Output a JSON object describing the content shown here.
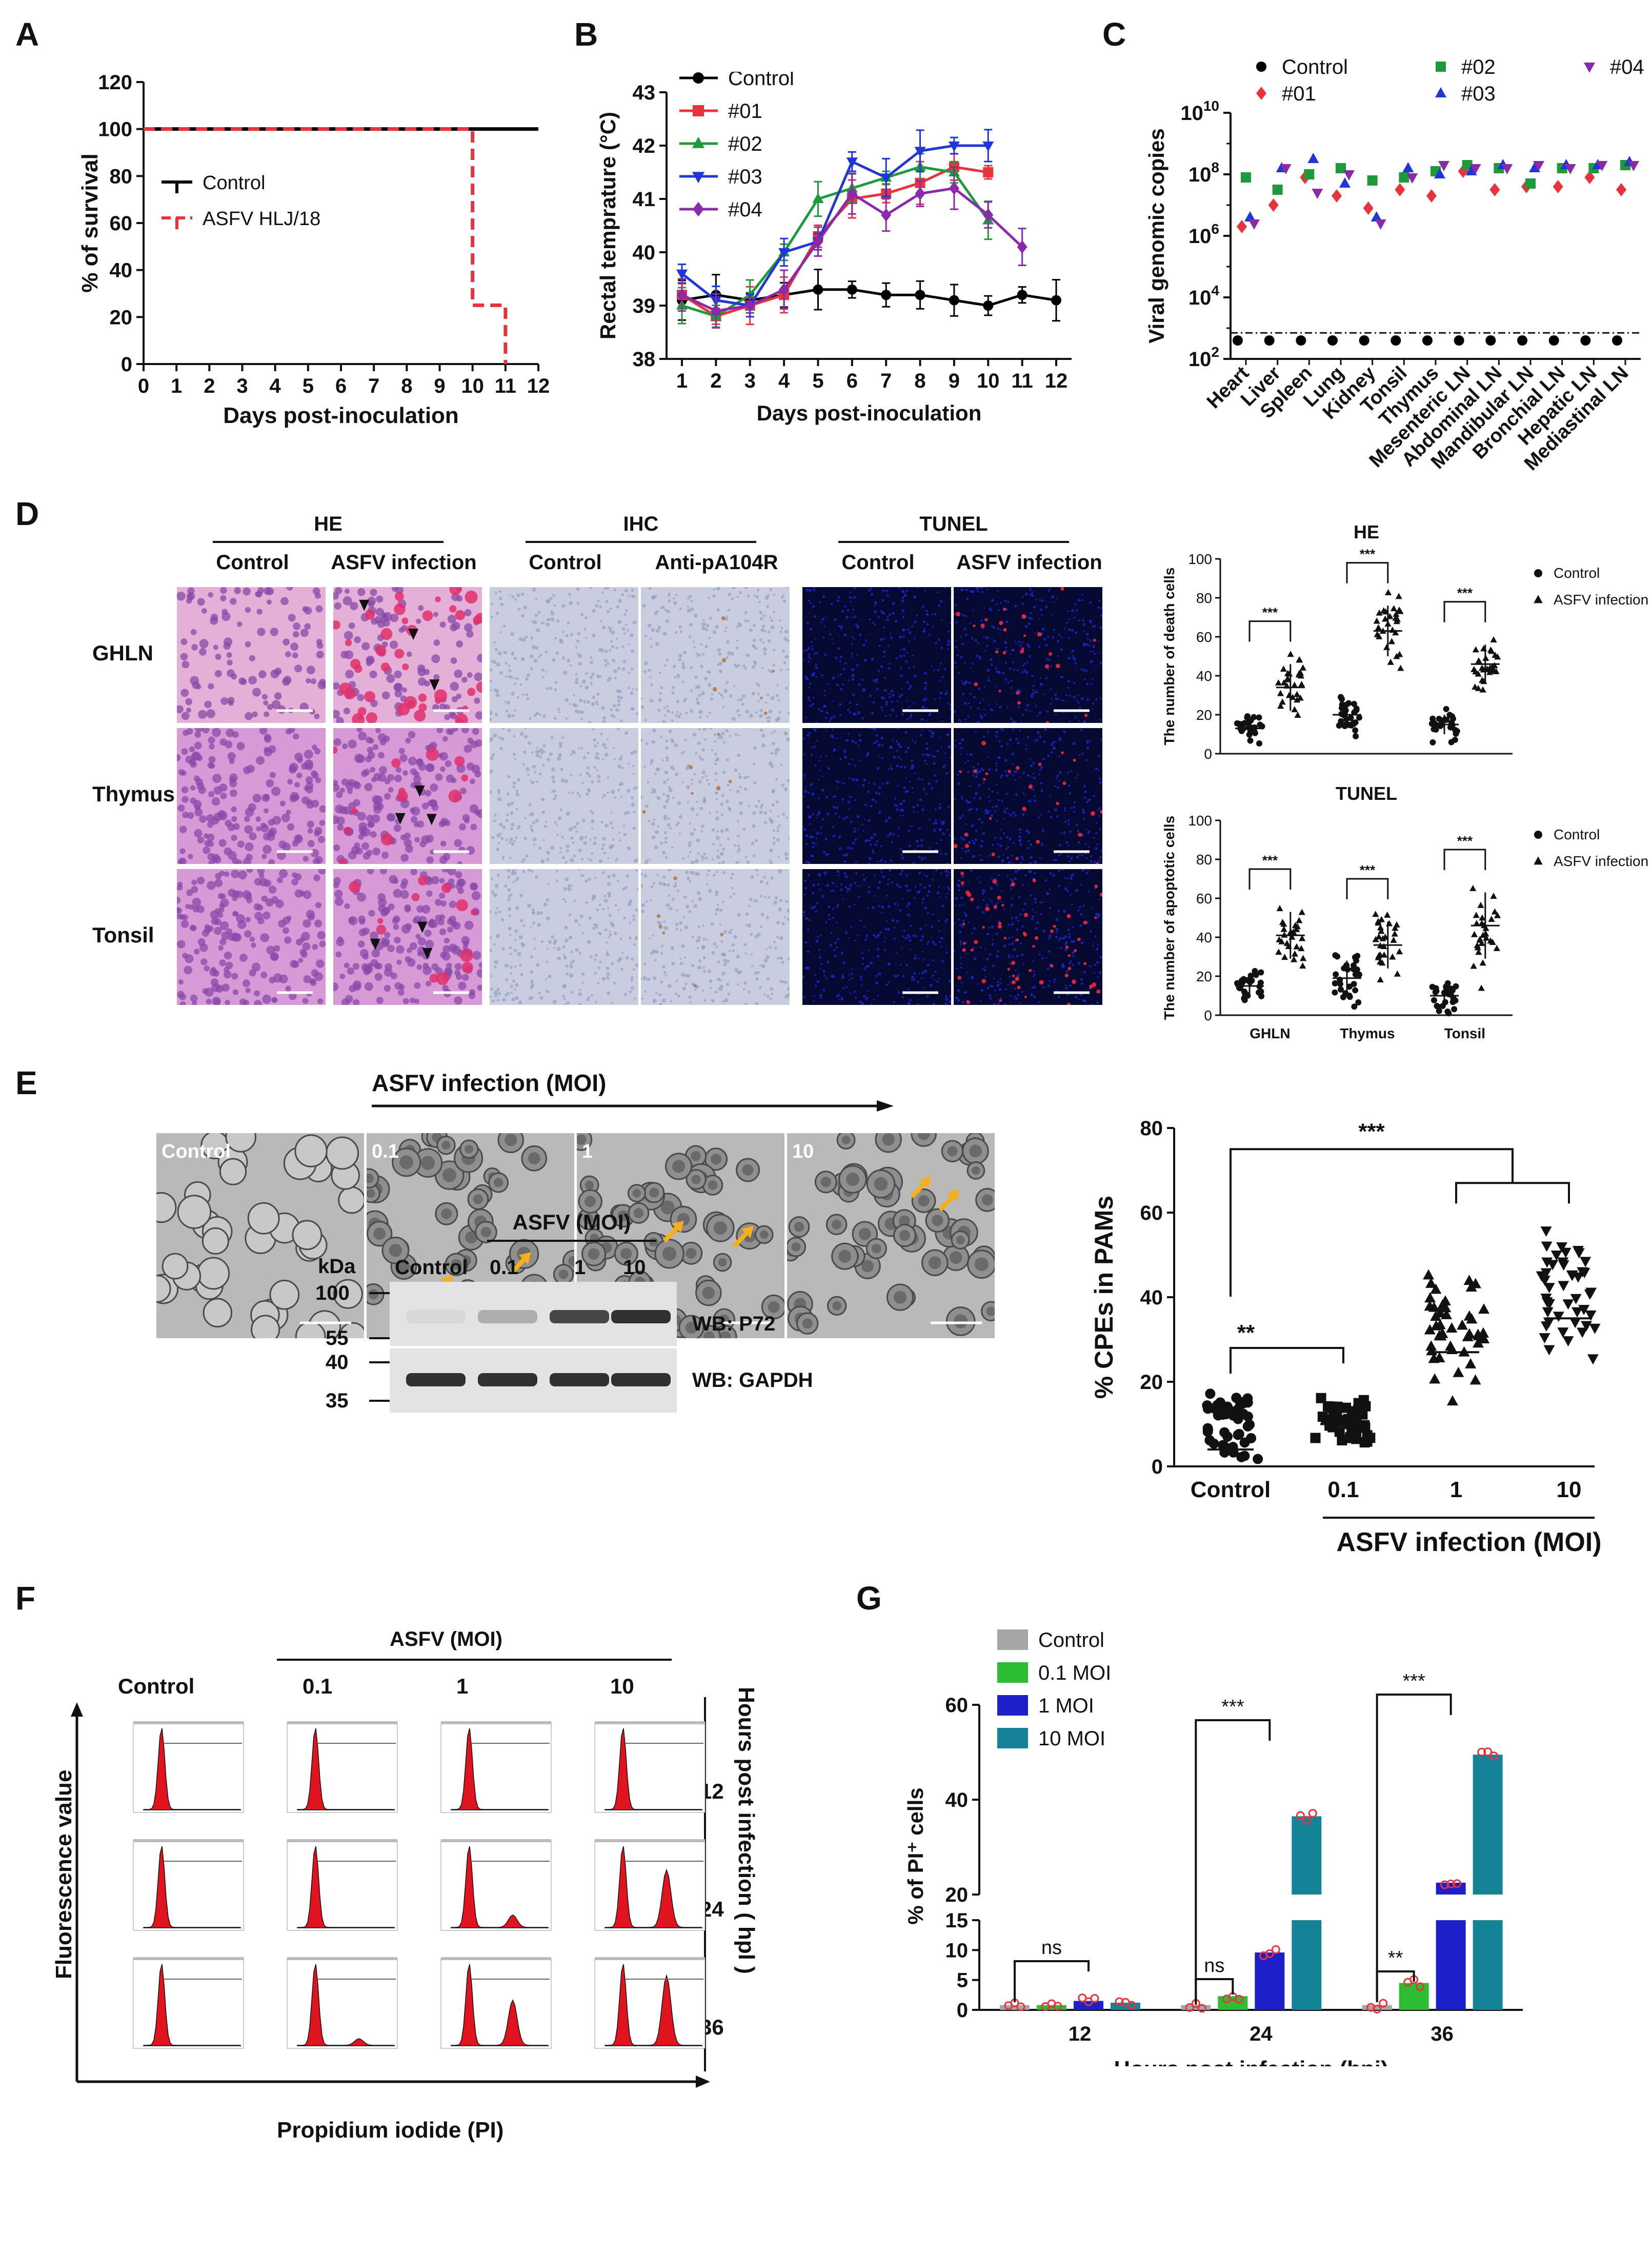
{
  "panels": [
    "A",
    "B",
    "C",
    "D",
    "E",
    "F",
    "G"
  ],
  "A": {
    "chart_data": {
      "type": "line",
      "xlabel": "Days post-inoculation",
      "ylabel": "% of survival",
      "xlim": [
        0,
        12
      ],
      "ylim": [
        0,
        120
      ],
      "xticks": [
        "0",
        "1",
        "2",
        "3",
        "4",
        "5",
        "6",
        "7",
        "8",
        "9",
        "10",
        "11",
        "12"
      ],
      "yticks": [
        "0",
        "20",
        "40",
        "60",
        "80",
        "100",
        "120"
      ],
      "series": [
        {
          "name": "Control",
          "color": "#000000",
          "points": [
            [
              0,
              100
            ],
            [
              12,
              100
            ]
          ]
        },
        {
          "name": "ASFV HLJ/18",
          "color": "#e8323c",
          "points": [
            [
              0,
              100
            ],
            [
              10,
              100
            ],
            [
              10,
              25
            ],
            [
              11,
              25
            ],
            [
              11,
              0
            ]
          ]
        }
      ]
    }
  },
  "B": {
    "chart_data": {
      "type": "line",
      "xlabel": "Days post-inoculation",
      "ylabel": "Rectal temprature (°C)",
      "xlim": [
        1,
        12
      ],
      "ylim": [
        38,
        43
      ],
      "xticks": [
        "1",
        "2",
        "3",
        "4",
        "5",
        "6",
        "7",
        "8",
        "9",
        "10",
        "11",
        "12"
      ],
      "yticks": [
        "38",
        "39",
        "40",
        "41",
        "42",
        "43"
      ],
      "series": [
        {
          "name": "Control",
          "color": "#000000",
          "marker": "circle",
          "x": [
            1,
            2,
            3,
            4,
            5,
            6,
            7,
            8,
            9,
            10,
            11,
            12
          ],
          "y": [
            39.1,
            39.2,
            39.1,
            39.2,
            39.3,
            39.3,
            39.2,
            39.2,
            39.1,
            39.0,
            39.2,
            39.1
          ]
        },
        {
          "name": "#01",
          "color": "#e8323c",
          "marker": "square",
          "x": [
            1,
            2,
            3,
            4,
            5,
            6,
            7,
            8,
            9,
            10
          ],
          "y": [
            39.2,
            38.8,
            39.0,
            39.2,
            40.3,
            41.0,
            41.1,
            41.3,
            41.6,
            41.5
          ]
        },
        {
          "name": "#02",
          "color": "#1f9a3a",
          "marker": "triangle",
          "x": [
            1,
            2,
            3,
            4,
            5,
            6,
            7,
            8,
            9,
            10
          ],
          "y": [
            39.0,
            38.8,
            39.2,
            40.0,
            41.0,
            41.2,
            41.4,
            41.6,
            41.5,
            40.6
          ]
        },
        {
          "name": "#03",
          "color": "#2036d6",
          "marker": "tri-down",
          "x": [
            1,
            2,
            3,
            4,
            5,
            6,
            7,
            8,
            9,
            10
          ],
          "y": [
            39.6,
            39.1,
            39.0,
            40.0,
            40.2,
            41.7,
            41.4,
            41.9,
            42.0,
            42.0
          ]
        },
        {
          "name": "#04",
          "color": "#8a2aa8",
          "marker": "diamond",
          "x": [
            1,
            2,
            3,
            4,
            5,
            6,
            7,
            8,
            9,
            10,
            11
          ],
          "y": [
            39.2,
            38.9,
            39.0,
            39.3,
            40.2,
            41.1,
            40.7,
            41.1,
            41.2,
            40.7,
            40.1
          ]
        }
      ]
    }
  },
  "C": {
    "chart_data": {
      "type": "scatter",
      "ylabel": "Viral genomic copies",
      "yscale": "log",
      "ylim": [
        100,
        10000000000
      ],
      "yticks": [
        "10^2",
        "10^4",
        "10^6",
        "10^8",
        "10^10"
      ],
      "categories": [
        "Heart",
        "Liver",
        "Spleen",
        "Lung",
        "Kidney",
        "Tonsil",
        "Thymus",
        "Mesenteric LN",
        "Abdominal LN",
        "Mandibular LN",
        "Bronchial LN",
        "Hepatic LN",
        "Mediastinal LN"
      ],
      "cutoff": 700,
      "series": [
        {
          "name": "Control",
          "color": "#000000",
          "marker": "circle",
          "log10": [
            2.6,
            2.6,
            2.6,
            2.6,
            2.6,
            2.6,
            2.6,
            2.6,
            2.6,
            2.6,
            2.6,
            2.6,
            2.6
          ]
        },
        {
          "name": "#01",
          "color": "#e8323c",
          "marker": "diamond",
          "log10": [
            6.3,
            7.0,
            7.9,
            7.3,
            6.9,
            7.5,
            7.3,
            8.1,
            7.5,
            7.6,
            7.6,
            7.9,
            7.5
          ]
        },
        {
          "name": "#02",
          "color": "#1f9a3a",
          "marker": "square",
          "log10": [
            7.9,
            7.5,
            8.0,
            8.2,
            7.8,
            7.9,
            8.1,
            8.3,
            8.2,
            7.7,
            8.2,
            8.2,
            8.3
          ]
        },
        {
          "name": "#03",
          "color": "#2036d6",
          "marker": "triangle",
          "log10": [
            6.6,
            8.2,
            8.5,
            7.7,
            6.6,
            8.2,
            8.0,
            8.1,
            8.3,
            8.2,
            8.3,
            8.3,
            8.4
          ]
        },
        {
          "name": "#04",
          "color": "#8a2aa8",
          "marker": "tri-down",
          "log10": [
            6.4,
            8.2,
            7.4,
            8.0,
            6.4,
            7.9,
            8.3,
            8.2,
            8.2,
            8.3,
            8.2,
            8.3,
            8.3
          ]
        }
      ]
    }
  },
  "D": {
    "groups": [
      {
        "title": "HE",
        "cols": [
          "Control",
          "ASFV infection"
        ]
      },
      {
        "title": "IHC",
        "cols": [
          "Control",
          "Anti-pA104R"
        ]
      },
      {
        "title": "TUNEL",
        "cols": [
          "Control",
          "ASFV infection"
        ]
      }
    ],
    "rows": [
      "GHLN",
      "Thymus",
      "Tonsil"
    ],
    "he_chart": {
      "chart_data": {
        "type": "scatter",
        "title": "HE",
        "ylabel": "The number of death cells",
        "ylim": [
          0,
          100
        ],
        "yticks": [
          "0",
          "20",
          "40",
          "60",
          "80",
          "100"
        ],
        "categories": [
          "GHLN",
          "Thymus",
          "Tonsil"
        ],
        "legend": [
          "Control",
          "ASFV infection"
        ],
        "significance": [
          "***",
          "***",
          "***"
        ],
        "control_mean": [
          13,
          20,
          15
        ],
        "infection_mean": [
          34,
          63,
          46
        ],
        "control_sd": [
          6,
          7,
          5
        ],
        "infection_sd": [
          12,
          13,
          10
        ]
      }
    },
    "tunel_chart": {
      "chart_data": {
        "type": "scatter",
        "title": "TUNEL",
        "ylabel": "The number of apoptotic cells",
        "ylim": [
          0,
          100
        ],
        "yticks": [
          "0",
          "20",
          "40",
          "60",
          "80",
          "100"
        ],
        "categories": [
          "GHLN",
          "Thymus",
          "Tonsil"
        ],
        "legend": [
          "Control",
          "ASFV infection"
        ],
        "significance": [
          "***",
          "***",
          "***"
        ],
        "control_mean": [
          15,
          19,
          10
        ],
        "infection_mean": [
          41,
          36,
          46
        ],
        "control_sd": [
          6,
          9,
          6
        ],
        "infection_sd": [
          12,
          12,
          17
        ]
      }
    }
  },
  "E": {
    "arrow_label": "ASFV  infection (MOI)",
    "micro_labels": [
      "Control",
      "0.1",
      "1",
      "10"
    ],
    "wb": {
      "header": "ASFV (MOI)",
      "lanes": [
        "Control",
        "0.1",
        "1",
        "10"
      ],
      "kda_label": "kDa",
      "markers_top": [
        "100",
        "55"
      ],
      "markers_bottom": [
        "40",
        "35"
      ],
      "band_labels": [
        "WB: P72",
        "WB: GAPDH"
      ],
      "p72_intensity": [
        0.05,
        0.25,
        0.75,
        0.85
      ],
      "gapdh_intensity": [
        0.85,
        0.85,
        0.85,
        0.85
      ]
    },
    "chart_data": {
      "type": "scatter",
      "ylabel": "% CPEs in PAMs",
      "xlabel": "ASFV infection (MOI)",
      "categories": [
        "Control",
        "0.1",
        "1",
        "10"
      ],
      "ylim": [
        0,
        80
      ],
      "yticks": [
        "0",
        "20",
        "40",
        "60",
        "80"
      ],
      "means": [
        4,
        10,
        27,
        35
      ],
      "mins": [
        0,
        3,
        14,
        22
      ],
      "maxs": [
        20,
        17,
        48,
        60
      ],
      "significance": [
        {
          "label": "**",
          "pair": [
            0,
            1
          ]
        },
        {
          "label": "***",
          "pair": [
            0,
            "1-10"
          ]
        }
      ]
    }
  },
  "F": {
    "header": "ASFV (MOI)",
    "cols": [
      "Control",
      "0.1",
      "1",
      "10"
    ],
    "rows": [
      "12",
      "24",
      "36"
    ],
    "ylabel": "Fluorescence value",
    "xlabel": "Propidium iodide (PI)",
    "side_label": "Hours post infection ( hpl )"
  },
  "G": {
    "chart_data": {
      "type": "bar",
      "ylabel": "% of PI⁺ cells",
      "xlabel": "Hours post infection (hpi)",
      "categories": [
        "12",
        "24",
        "36"
      ],
      "yticks_lower": [
        "0",
        "5",
        "10",
        "15"
      ],
      "yticks_upper": [
        "20",
        "40",
        "60"
      ],
      "axis_break": [
        15,
        20
      ],
      "series": [
        {
          "name": "Control",
          "color": "#a6a6a6",
          "values": [
            0.8,
            0.8,
            0.8
          ]
        },
        {
          "name": "0.1 MOI",
          "color": "#2dbd33",
          "values": [
            0.8,
            2.3,
            4.5
          ]
        },
        {
          "name": "1 MOI",
          "color": "#1d20c8",
          "values": [
            1.5,
            9.6,
            22.5
          ]
        },
        {
          "name": "10 MOI",
          "color": "#14839a",
          "values": [
            1.2,
            36.5,
            49.5
          ]
        }
      ],
      "significance": [
        {
          "category": "12",
          "label": "ns"
        },
        {
          "category": "24",
          "label": "ns"
        },
        {
          "category": "24",
          "label": "***"
        },
        {
          "category": "36",
          "label": "**"
        },
        {
          "category": "36",
          "label": "***"
        }
      ]
    }
  }
}
